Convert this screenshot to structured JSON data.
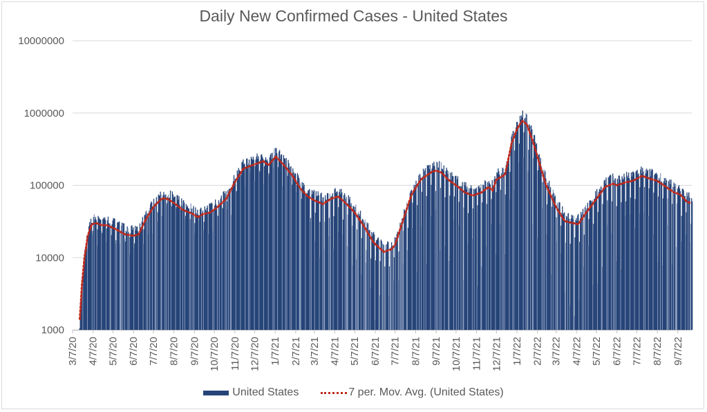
{
  "chart_data": {
    "type": "bar",
    "title": "Daily New Confirmed Cases - United States",
    "xlabel": "",
    "ylabel": "",
    "yscale": "log",
    "ylim": [
      1000,
      10000000
    ],
    "y_ticks": [
      "10000000",
      "1000000",
      "100000",
      "10000",
      "1000"
    ],
    "y_tick_values": [
      10000000,
      1000000,
      100000,
      10000,
      1000
    ],
    "grid": true,
    "legend_position": "bottom",
    "x_range": [
      "2020-03-07",
      "2022-09-28"
    ],
    "x_ticks": [
      "3/7/20",
      "4/7/20",
      "5/7/20",
      "6/7/20",
      "7/7/20",
      "8/7/20",
      "9/7/20",
      "10/7/20",
      "11/7/20",
      "12/7/20",
      "1/7/21",
      "2/7/21",
      "3/7/21",
      "4/7/21",
      "5/7/21",
      "6/7/21",
      "7/7/21",
      "8/7/21",
      "9/7/21",
      "10/7/21",
      "11/7/21",
      "12/7/21",
      "1/7/22",
      "2/7/22",
      "3/7/22",
      "4/7/22",
      "5/7/22",
      "6/7/22",
      "7/7/22",
      "8/7/22",
      "9/7/22"
    ],
    "x_tick_dates": [
      "2020-03-07",
      "2020-04-07",
      "2020-05-07",
      "2020-06-07",
      "2020-07-07",
      "2020-08-07",
      "2020-09-07",
      "2020-10-07",
      "2020-11-07",
      "2020-12-07",
      "2021-01-07",
      "2021-02-07",
      "2021-03-07",
      "2021-04-07",
      "2021-05-07",
      "2021-06-07",
      "2021-07-07",
      "2021-08-07",
      "2021-09-07",
      "2021-10-07",
      "2021-11-07",
      "2021-12-07",
      "2022-01-07",
      "2022-02-07",
      "2022-03-07",
      "2022-04-07",
      "2022-05-07",
      "2022-06-07",
      "2022-07-07",
      "2022-08-07",
      "2022-09-07"
    ],
    "series": [
      {
        "name": "United States",
        "type": "bar",
        "color": "#264478",
        "data_start": "2020-03-17",
        "weekly_low_ratio_2020": 0.75,
        "weekly_low_ratio_2021_2022": 0.25,
        "note": "daily bars approximated around moving average with weekly reporting dips"
      },
      {
        "name": "7 per. Mov. Avg. (United States)",
        "type": "line",
        "style": "dotted",
        "color": "#c0291b",
        "points": [
          [
            "2020-03-17",
            1000
          ],
          [
            "2020-03-21",
            4000
          ],
          [
            "2020-03-25",
            10000
          ],
          [
            "2020-03-30",
            20000
          ],
          [
            "2020-04-05",
            29000
          ],
          [
            "2020-04-12",
            30000
          ],
          [
            "2020-04-20",
            28000
          ],
          [
            "2020-04-28",
            28000
          ],
          [
            "2020-05-10",
            25000
          ],
          [
            "2020-05-25",
            21000
          ],
          [
            "2020-06-07",
            20000
          ],
          [
            "2020-06-15",
            21000
          ],
          [
            "2020-06-25",
            33000
          ],
          [
            "2020-07-07",
            50000
          ],
          [
            "2020-07-20",
            66000
          ],
          [
            "2020-07-28",
            65000
          ],
          [
            "2020-08-07",
            57000
          ],
          [
            "2020-08-20",
            46000
          ],
          [
            "2020-09-05",
            40000
          ],
          [
            "2020-09-12",
            36000
          ],
          [
            "2020-09-20",
            40000
          ],
          [
            "2020-10-01",
            42000
          ],
          [
            "2020-10-12",
            50000
          ],
          [
            "2020-10-25",
            65000
          ],
          [
            "2020-11-07",
            110000
          ],
          [
            "2020-11-20",
            170000
          ],
          [
            "2020-12-07",
            195000
          ],
          [
            "2020-12-20",
            215000
          ],
          [
            "2020-12-28",
            190000
          ],
          [
            "2021-01-08",
            250000
          ],
          [
            "2021-01-20",
            190000
          ],
          [
            "2021-02-01",
            140000
          ],
          [
            "2021-02-14",
            90000
          ],
          [
            "2021-02-25",
            70000
          ],
          [
            "2021-03-07",
            62000
          ],
          [
            "2021-03-20",
            55000
          ],
          [
            "2021-04-01",
            65000
          ],
          [
            "2021-04-12",
            70000
          ],
          [
            "2021-04-25",
            55000
          ],
          [
            "2021-05-07",
            42000
          ],
          [
            "2021-05-20",
            28000
          ],
          [
            "2021-06-05",
            16000
          ],
          [
            "2021-06-20",
            12000
          ],
          [
            "2021-07-01",
            13000
          ],
          [
            "2021-07-07",
            15000
          ],
          [
            "2021-07-20",
            35000
          ],
          [
            "2021-08-01",
            75000
          ],
          [
            "2021-08-15",
            120000
          ],
          [
            "2021-09-01",
            155000
          ],
          [
            "2021-09-07",
            160000
          ],
          [
            "2021-09-15",
            150000
          ],
          [
            "2021-09-25",
            120000
          ],
          [
            "2021-10-07",
            100000
          ],
          [
            "2021-10-20",
            80000
          ],
          [
            "2021-11-01",
            72000
          ],
          [
            "2021-11-15",
            80000
          ],
          [
            "2021-11-25",
            95000
          ],
          [
            "2021-12-01",
            85000
          ],
          [
            "2021-12-07",
            120000
          ],
          [
            "2021-12-20",
            140000
          ],
          [
            "2021-12-30",
            380000
          ],
          [
            "2022-01-07",
            600000
          ],
          [
            "2022-01-15",
            780000
          ],
          [
            "2022-01-22",
            700000
          ],
          [
            "2022-02-01",
            380000
          ],
          [
            "2022-02-10",
            200000
          ],
          [
            "2022-02-20",
            100000
          ],
          [
            "2022-03-07",
            50000
          ],
          [
            "2022-03-20",
            32000
          ],
          [
            "2022-04-01",
            30000
          ],
          [
            "2022-04-10",
            29000
          ],
          [
            "2022-04-20",
            40000
          ],
          [
            "2022-05-07",
            65000
          ],
          [
            "2022-05-20",
            95000
          ],
          [
            "2022-06-01",
            105000
          ],
          [
            "2022-06-07",
            100000
          ],
          [
            "2022-06-20",
            110000
          ],
          [
            "2022-07-01",
            115000
          ],
          [
            "2022-07-15",
            135000
          ],
          [
            "2022-07-25",
            125000
          ],
          [
            "2022-08-07",
            115000
          ],
          [
            "2022-08-20",
            95000
          ],
          [
            "2022-09-01",
            80000
          ],
          [
            "2022-09-10",
            75000
          ],
          [
            "2022-09-20",
            60000
          ],
          [
            "2022-09-25",
            57000
          ]
        ]
      }
    ]
  },
  "legend": {
    "items": [
      {
        "label": "United States"
      },
      {
        "label": "7 per. Mov. Avg. (United States)"
      }
    ]
  }
}
